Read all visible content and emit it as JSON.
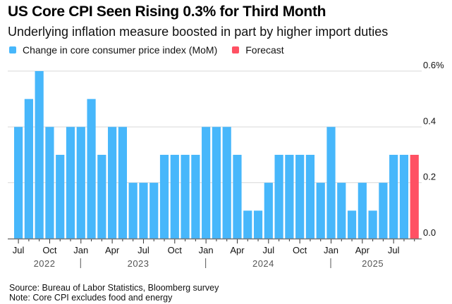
{
  "header": {
    "title": "US Core CPI Seen Rising 0.3% for Third Month",
    "subtitle": "Underlying inflation measure boosted in part by higher import duties"
  },
  "legend": [
    {
      "label": "Change in core consumer price index (MoM)",
      "color": "#47b7fb"
    },
    {
      "label": "Forecast",
      "color": "#ff5163"
    }
  ],
  "footer": {
    "source": "Source: Bureau of Labor Statistics, Bloomberg survey",
    "note": "Note: Core CPI excludes food and energy"
  },
  "chart_data": {
    "type": "bar",
    "title": "US Core CPI Seen Rising 0.3% for Third Month",
    "subtitle": "Underlying inflation measure boosted in part by higher import duties",
    "xlabel": "",
    "ylabel": "",
    "ylim": [
      0,
      0.6
    ],
    "y_ticks": [
      {
        "value": 0.0,
        "label": "0.0"
      },
      {
        "value": 0.2,
        "label": "0.2"
      },
      {
        "value": 0.4,
        "label": "0.4"
      },
      {
        "value": 0.6,
        "label": "0.6%"
      }
    ],
    "y_axis_position": "right",
    "grid": true,
    "legend_position": "top-left",
    "categories": [
      "2022-07",
      "2022-08",
      "2022-09",
      "2022-10",
      "2022-11",
      "2022-12",
      "2023-01",
      "2023-02",
      "2023-03",
      "2023-04",
      "2023-05",
      "2023-06",
      "2023-07",
      "2023-08",
      "2023-09",
      "2023-10",
      "2023-11",
      "2023-12",
      "2024-01",
      "2024-02",
      "2024-03",
      "2024-04",
      "2024-05",
      "2024-06",
      "2024-07",
      "2024-08",
      "2024-09",
      "2024-10",
      "2024-11",
      "2024-12",
      "2025-01",
      "2025-02",
      "2025-03",
      "2025-04",
      "2025-05",
      "2025-06",
      "2025-07",
      "2025-08",
      "2025-09"
    ],
    "series": [
      {
        "name": "Change in core consumer price index (MoM)",
        "color": "#47b7fb",
        "values": [
          0.4,
          0.5,
          0.6,
          0.4,
          0.3,
          0.4,
          0.4,
          0.5,
          0.3,
          0.4,
          0.4,
          0.2,
          0.2,
          0.2,
          0.3,
          0.3,
          0.3,
          0.3,
          0.4,
          0.4,
          0.4,
          0.3,
          0.1,
          0.1,
          0.2,
          0.3,
          0.3,
          0.3,
          0.3,
          0.2,
          0.4,
          0.2,
          0.1,
          0.2,
          0.1,
          0.2,
          0.3,
          0.3,
          null
        ]
      },
      {
        "name": "Forecast",
        "color": "#ff5163",
        "values": [
          null,
          null,
          null,
          null,
          null,
          null,
          null,
          null,
          null,
          null,
          null,
          null,
          null,
          null,
          null,
          null,
          null,
          null,
          null,
          null,
          null,
          null,
          null,
          null,
          null,
          null,
          null,
          null,
          null,
          null,
          null,
          null,
          null,
          null,
          null,
          null,
          null,
          null,
          0.3
        ]
      }
    ],
    "x_tick_labels": [
      {
        "index": 0,
        "label": "Jul"
      },
      {
        "index": 3,
        "label": "Oct"
      },
      {
        "index": 6,
        "label": "Jan"
      },
      {
        "index": 9,
        "label": "Apr"
      },
      {
        "index": 12,
        "label": "Jul"
      },
      {
        "index": 15,
        "label": "Oct"
      },
      {
        "index": 18,
        "label": "Jan"
      },
      {
        "index": 21,
        "label": "Apr"
      },
      {
        "index": 24,
        "label": "Jul"
      },
      {
        "index": 27,
        "label": "Oct"
      },
      {
        "index": 30,
        "label": "Jan"
      },
      {
        "index": 33,
        "label": "Apr"
      },
      {
        "index": 36,
        "label": "Jul"
      }
    ],
    "year_labels": [
      {
        "label": "2022",
        "start": 0,
        "end": 5
      },
      {
        "label": "2023",
        "start": 6,
        "end": 17
      },
      {
        "label": "2024",
        "start": 18,
        "end": 29
      },
      {
        "label": "2025",
        "start": 30,
        "end": 38
      }
    ],
    "year_separators": [
      6,
      18,
      30
    ]
  }
}
